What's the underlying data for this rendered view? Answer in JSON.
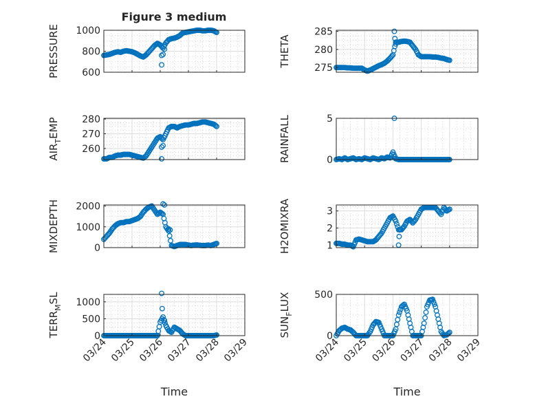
{
  "chart_data": {
    "type": "scatter",
    "title": "Figure 3 medium",
    "marker_color": "#0072BD",
    "xlabel": "Time",
    "x_unit": "days since 03/24",
    "xlim": [
      0,
      5
    ],
    "xtick_values": [
      0,
      1,
      2,
      3,
      4,
      5
    ],
    "xtick_labels": [
      "03/24",
      "03/25",
      "03/26",
      "03/27",
      "03/28",
      "03/29"
    ],
    "grid": "on (major + minor)",
    "panels": [
      {
        "id": "pressure",
        "ylabel": {
          "main": "PRESSURE",
          "sub": "",
          "rest": ""
        },
        "ylim": [
          600,
          1000
        ],
        "yticks": [
          600,
          800,
          1000
        ],
        "points": [
          760,
          765,
          770,
          780,
          790,
          795,
          790,
          800,
          805,
          800,
          795,
          785,
          770,
          755,
          745,
          765,
          795,
          825,
          855,
          875,
          860,
          830,
          880,
          910,
          920,
          925,
          935,
          950,
          975,
          980,
          985,
          990,
          995,
          1000,
          1000,
          995,
          995,
          1000,
          1000,
          995,
          980
        ],
        "outliers": [
          [
            2.05,
            760
          ],
          [
            2.05,
            670
          ],
          [
            2.1,
            770
          ],
          [
            2.15,
            820
          ]
        ]
      },
      {
        "id": "theta",
        "ylabel": {
          "main": "THETA",
          "sub": "",
          "rest": ""
        },
        "ylim": [
          273.7,
          285.3
        ],
        "yticks": [
          275,
          280,
          285
        ],
        "points": [
          275,
          275,
          275,
          275,
          274.9,
          274.9,
          274.8,
          274.8,
          274.8,
          274.8,
          274.3,
          274,
          274.3,
          274.7,
          275.1,
          275.5,
          275.8,
          276.2,
          276.8,
          277.6,
          278.5,
          282,
          282,
          282.2,
          282.3,
          282.2,
          282,
          281,
          280,
          278.5,
          278,
          278,
          278,
          278,
          277.9,
          277.9,
          277.8,
          277.6,
          277.5,
          277.2,
          277
        ],
        "outliers": [
          [
            2.05,
            285
          ],
          [
            2.07,
            283
          ],
          [
            2.1,
            281.5
          ]
        ]
      },
      {
        "id": "air_temp",
        "ylabel": {
          "main": "AIR",
          "sub": "T",
          "rest": "EMP"
        },
        "ylim": [
          252.5,
          280.5
        ],
        "yticks": [
          260,
          270,
          280
        ],
        "points": [
          253,
          253,
          254,
          254,
          255,
          255.5,
          255.5,
          256,
          256,
          256,
          255.5,
          255,
          254.5,
          254,
          253.5,
          255,
          258,
          261,
          264,
          267,
          268,
          266,
          270,
          274,
          275,
          275,
          274,
          275,
          275.5,
          276,
          276,
          276.5,
          277,
          277,
          277.5,
          278,
          278,
          277.5,
          277,
          276.5,
          275
        ],
        "outliers": [
          [
            2.05,
            261
          ],
          [
            2.05,
            253
          ],
          [
            2.1,
            262
          ]
        ]
      },
      {
        "id": "rainfall",
        "ylabel": {
          "main": "RAINFALL",
          "sub": "",
          "rest": ""
        },
        "ylim": [
          0,
          5
        ],
        "yticks": [
          0,
          5
        ],
        "points": [
          0,
          0.1,
          0,
          0.2,
          0,
          0.1,
          0.2,
          0,
          0.1,
          0,
          0.2,
          0.1,
          0,
          0.2,
          0.1,
          0,
          0.2,
          0.1,
          0.3,
          0.2,
          0.9,
          0.1,
          0,
          0,
          0,
          0,
          0,
          0,
          0,
          0,
          0,
          0,
          0,
          0,
          0,
          0,
          0,
          0,
          0,
          0,
          0
        ],
        "outliers": [
          [
            2.05,
            5.0
          ]
        ]
      },
      {
        "id": "mixdepth",
        "ylabel": {
          "main": "MIXDEPTH",
          "sub": "",
          "rest": ""
        },
        "ylim": [
          0,
          2050
        ],
        "yticks": [
          0,
          1000,
          2000
        ],
        "points": [
          400,
          550,
          700,
          900,
          1050,
          1150,
          1200,
          1200,
          1250,
          1250,
          1300,
          1350,
          1400,
          1500,
          1700,
          1850,
          1950,
          2000,
          1800,
          1600,
          1700,
          1600,
          1000,
          800,
          100,
          50,
          100,
          150,
          150,
          150,
          120,
          100,
          120,
          130,
          110,
          100,
          100,
          120,
          100,
          150,
          200
        ],
        "outliers": [
          [
            2.1,
            2100
          ],
          [
            2.15,
            2050
          ],
          [
            2.3,
            900
          ],
          [
            2.35,
            850
          ]
        ]
      },
      {
        "id": "h2omixra",
        "ylabel": {
          "main": "H2OMIXRA",
          "sub": "",
          "rest": ""
        },
        "ylim": [
          0.85,
          3.35
        ],
        "yticks": [
          1,
          2,
          3
        ],
        "points": [
          1.1,
          1.1,
          1.05,
          1.05,
          1.0,
          1.0,
          0.9,
          1.3,
          1.35,
          1.3,
          1.25,
          1.2,
          1.2,
          1.2,
          1.3,
          1.5,
          1.7,
          2.0,
          2.3,
          2.6,
          2.7,
          2.4,
          1.9,
          1.9,
          2.1,
          2.4,
          2.5,
          2.3,
          2.5,
          2.8,
          3.1,
          3.2,
          3.2,
          3.2,
          3.2,
          3.2,
          3.0,
          2.8,
          3.2,
          3.0,
          3.1
        ],
        "outliers": [
          [
            2.2,
            1.0
          ],
          [
            2.22,
            1.5
          ],
          [
            2.25,
            1.9
          ]
        ]
      },
      {
        "id": "terr_msl",
        "ylabel": {
          "main": "TERR",
          "sub": "M",
          "rest": "SL"
        },
        "ylim": [
          0,
          1220
        ],
        "yticks": [
          0,
          500,
          1000
        ],
        "points": [
          0,
          0,
          0,
          0,
          0,
          0,
          0,
          0,
          0,
          0,
          0,
          0,
          0,
          0,
          0,
          0,
          0,
          0,
          0,
          0,
          400,
          550,
          300,
          150,
          100,
          250,
          200,
          150,
          50,
          0,
          0,
          0,
          0,
          0,
          0,
          0,
          0,
          0,
          0,
          0,
          20
        ],
        "outliers": [
          [
            2.05,
            1250
          ],
          [
            2.07,
            800
          ],
          [
            2.15,
            450
          ]
        ]
      },
      {
        "id": "sun_flux",
        "ylabel": {
          "main": "SUN",
          "sub": "F",
          "rest": "LUX"
        },
        "ylim": [
          0,
          500
        ],
        "yticks": [
          0,
          500
        ],
        "points": [
          0,
          60,
          90,
          100,
          80,
          70,
          40,
          0,
          0,
          0,
          0,
          0,
          50,
          130,
          170,
          160,
          80,
          0,
          0,
          0,
          0,
          80,
          250,
          350,
          380,
          300,
          150,
          0,
          0,
          0,
          0,
          150,
          350,
          430,
          440,
          350,
          200,
          50,
          0,
          10,
          40
        ],
        "outliers": []
      }
    ]
  }
}
